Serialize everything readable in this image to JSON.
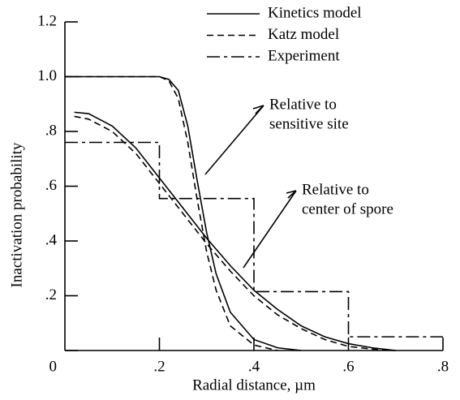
{
  "chart_data": {
    "type": "line",
    "xlabel": "Radial distance, µm",
    "ylabel": "Inactivation probability",
    "xlim": [
      0,
      0.8
    ],
    "ylim": [
      0,
      1.2
    ],
    "xticks": [
      {
        "value": 0.2,
        "label": ".2"
      },
      {
        "value": 0.4,
        "label": ".4"
      },
      {
        "value": 0.6,
        "label": ".6"
      },
      {
        "value": 0.8,
        "label": ".8"
      }
    ],
    "yticks": [
      0,
      {
        "value": 0.2,
        "label": ".2"
      },
      {
        "value": 0.4,
        "label": ".4"
      },
      {
        "value": 0.6,
        "label": ".6"
      },
      {
        "value": 0.8,
        "label": ".8"
      },
      {
        "value": 1.0,
        "label": "1.0"
      },
      {
        "value": 1.2,
        "label": "1.2"
      }
    ],
    "color": "#000000",
    "series": [
      {
        "name": "Kinetics model",
        "dash": "solid",
        "curves": [
          {
            "x": [
              0,
              0.2,
              0.22,
              0.24,
              0.26,
              0.28,
              0.3,
              0.32,
              0.35,
              0.4,
              0.45,
              0.5
            ],
            "values": [
              1.0,
              1.0,
              0.99,
              0.95,
              0.82,
              0.62,
              0.43,
              0.28,
              0.14,
              0.04,
              0.01,
              0
            ]
          },
          {
            "x": [
              0.02,
              0.05,
              0.1,
              0.15,
              0.2,
              0.25,
              0.3,
              0.35,
              0.4,
              0.45,
              0.5,
              0.55,
              0.6,
              0.65,
              0.7
            ],
            "values": [
              0.87,
              0.865,
              0.82,
              0.74,
              0.63,
              0.52,
              0.41,
              0.31,
              0.22,
              0.15,
              0.09,
              0.05,
              0.025,
              0.01,
              0
            ]
          }
        ]
      },
      {
        "name": "Katz model",
        "dash": "dashed",
        "curves": [
          {
            "x": [
              0,
              0.2,
              0.22,
              0.24,
              0.26,
              0.28,
              0.3,
              0.32,
              0.35,
              0.4,
              0.45
            ],
            "values": [
              1.0,
              1.0,
              0.985,
              0.92,
              0.76,
              0.55,
              0.36,
              0.22,
              0.09,
              0.02,
              0
            ]
          },
          {
            "x": [
              0.02,
              0.05,
              0.1,
              0.15,
              0.2,
              0.25,
              0.3,
              0.35,
              0.4,
              0.45,
              0.5,
              0.55,
              0.6,
              0.65,
              0.7
            ],
            "values": [
              0.855,
              0.845,
              0.8,
              0.72,
              0.61,
              0.5,
              0.39,
              0.29,
              0.2,
              0.13,
              0.08,
              0.04,
              0.015,
              0.005,
              0
            ]
          }
        ]
      },
      {
        "name": "Experiment",
        "dash": "dashdot",
        "curves": [
          {
            "x": [
              0,
              0.2,
              0.2,
              0.4,
              0.4,
              0.6,
              0.6,
              0.8
            ],
            "values": [
              0.76,
              0.76,
              0.555,
              0.555,
              0.215,
              0.215,
              0.05,
              0.05
            ]
          }
        ]
      }
    ],
    "annotations": [
      {
        "lines": [
          "Relative to",
          "sensitive site"
        ]
      },
      {
        "lines": [
          "Relative to",
          "center of spore"
        ]
      }
    ]
  }
}
